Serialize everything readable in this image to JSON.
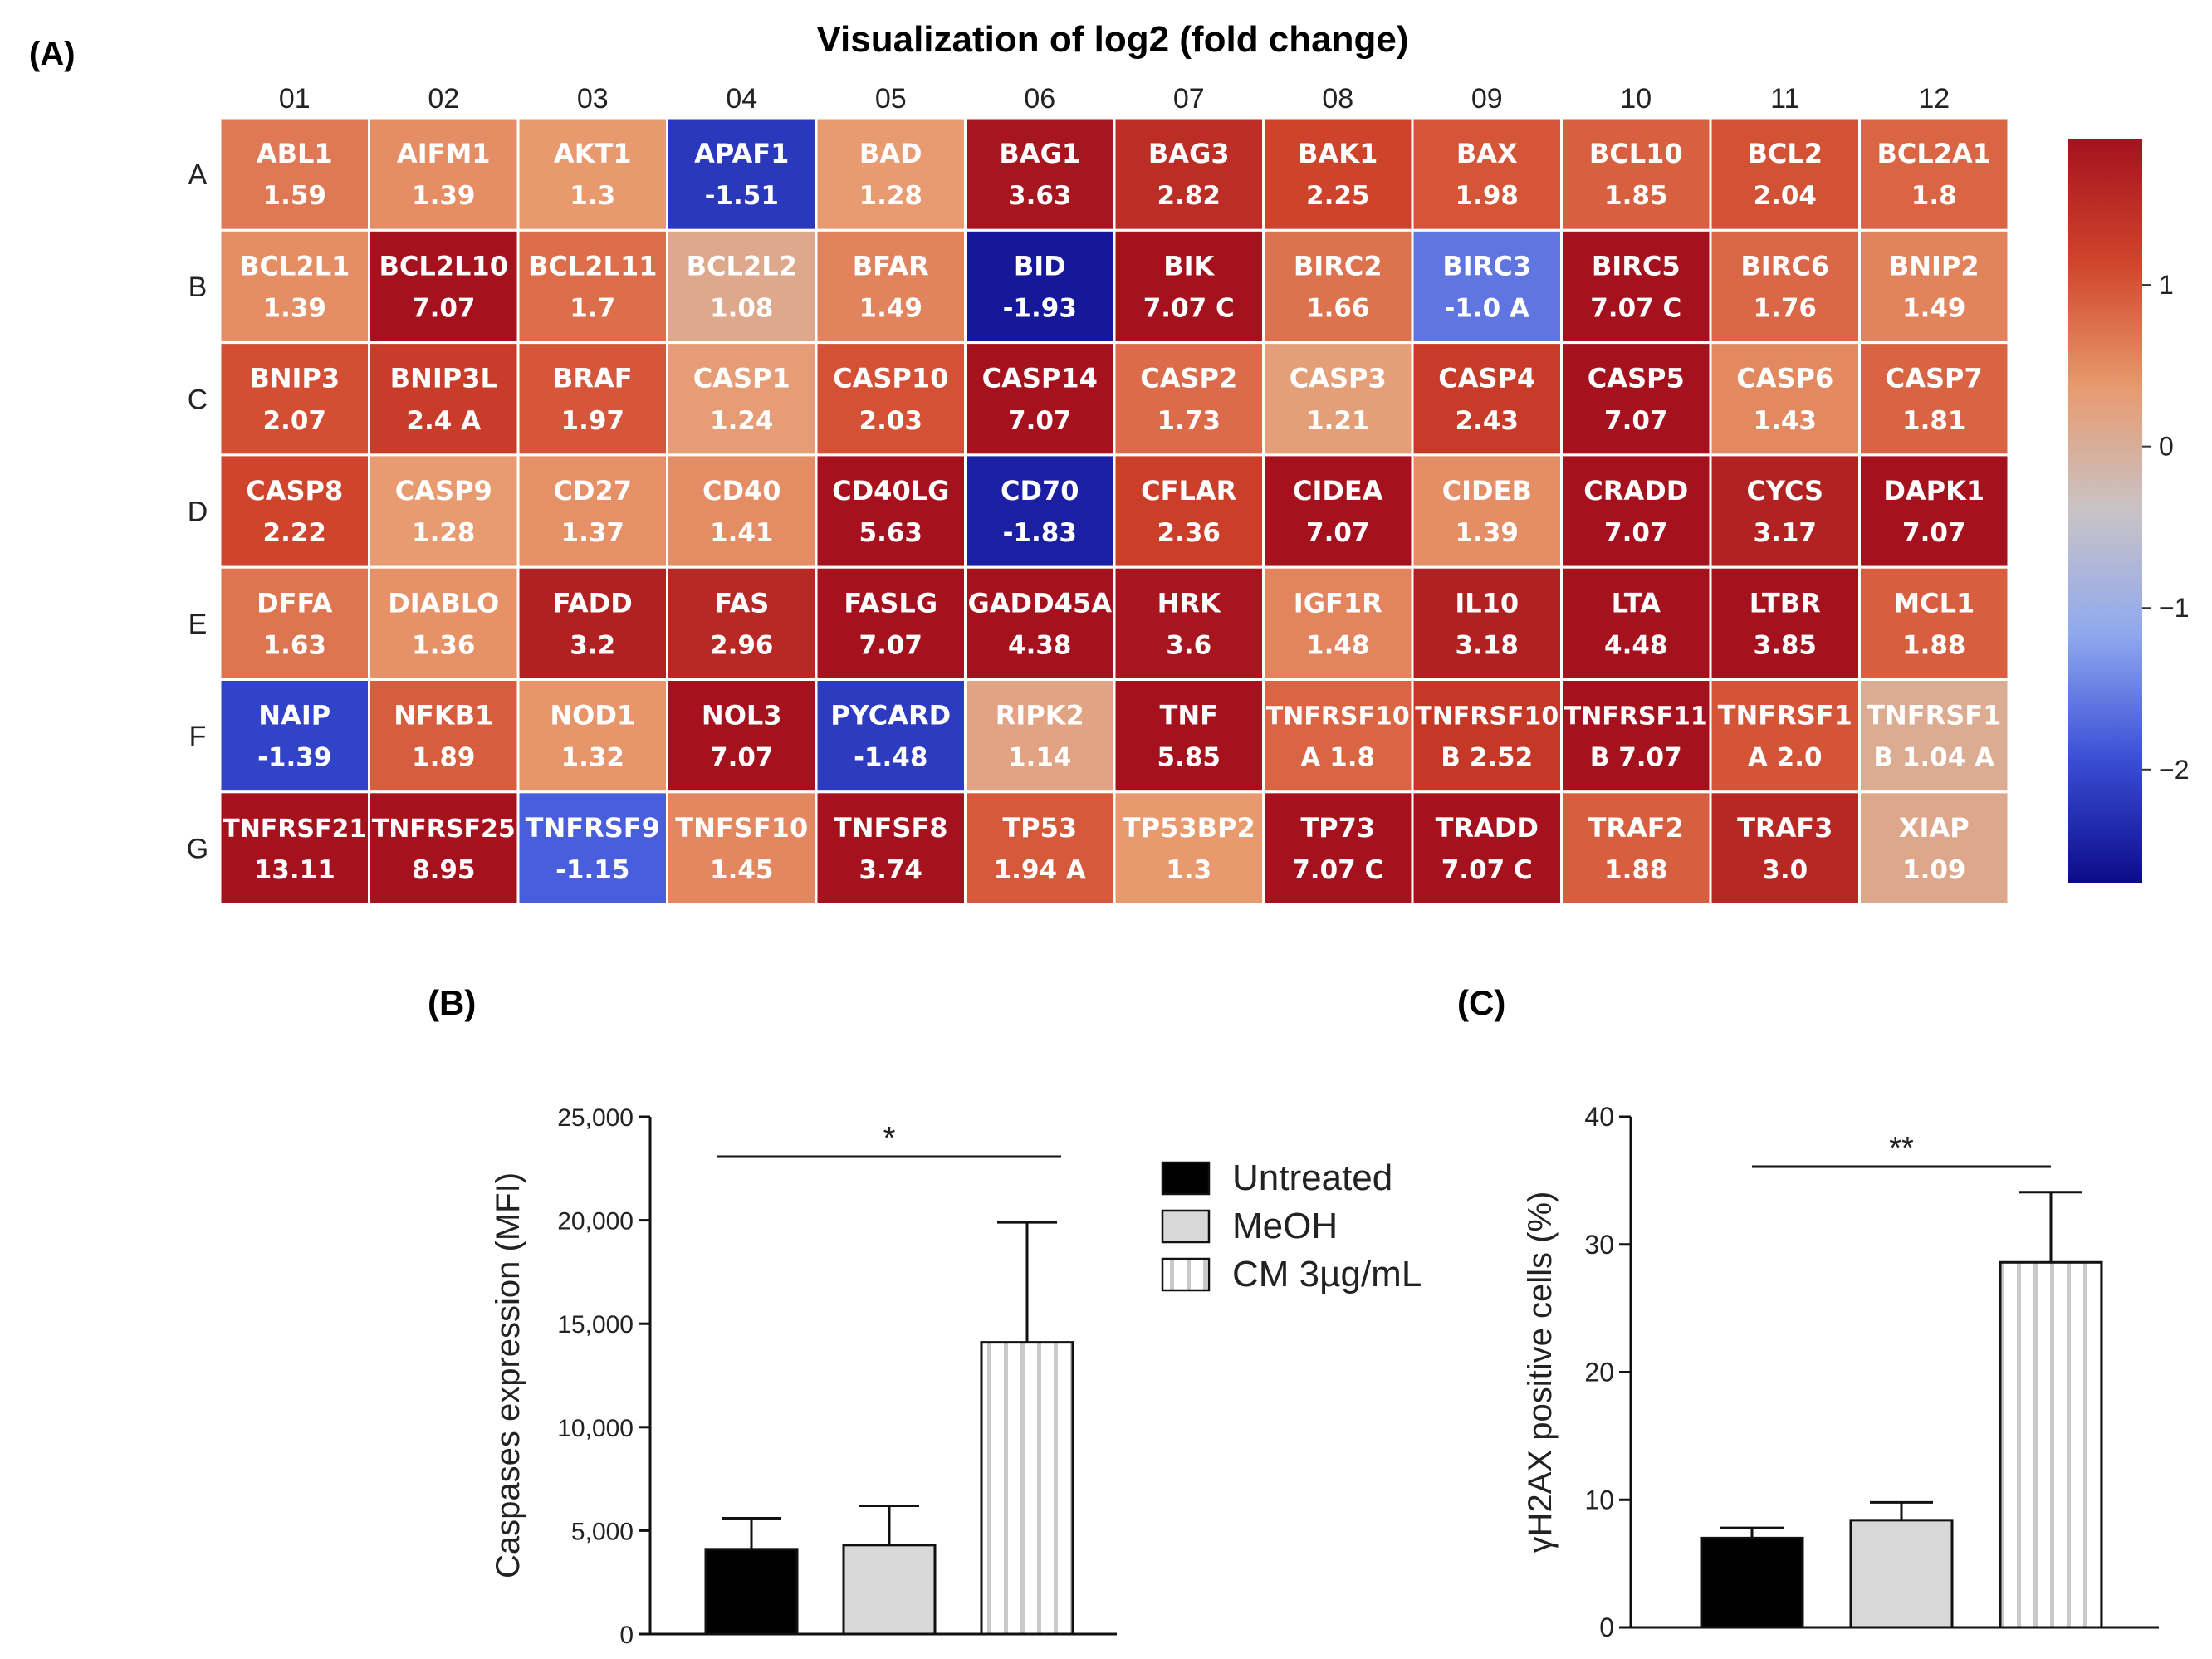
{
  "panels": {
    "a_label": "(A)",
    "b_label": "(B)",
    "c_label": "(C)"
  },
  "chart_data": [
    {
      "type": "heatmap",
      "title": "Visualization of log2 (fold change)",
      "columns": [
        "01",
        "02",
        "03",
        "04",
        "05",
        "06",
        "07",
        "08",
        "09",
        "10",
        "11",
        "12"
      ],
      "rows": [
        "A",
        "B",
        "C",
        "D",
        "E",
        "F",
        "G"
      ],
      "cells": [
        [
          [
            "ABL1",
            "1.59"
          ],
          [
            "AIFM1",
            "1.39"
          ],
          [
            "AKT1",
            "1.3"
          ],
          [
            "APAF1",
            "-1.51"
          ],
          [
            "BAD",
            "1.28"
          ],
          [
            "BAG1",
            "3.63"
          ],
          [
            "BAG3",
            "2.82"
          ],
          [
            "BAK1",
            "2.25"
          ],
          [
            "BAX",
            "1.98"
          ],
          [
            "BCL10",
            "1.85"
          ],
          [
            "BCL2",
            "2.04"
          ],
          [
            "BCL2A1",
            "1.8"
          ]
        ],
        [
          [
            "BCL2L1",
            "1.39"
          ],
          [
            "BCL2L10",
            "7.07"
          ],
          [
            "BCL2L11",
            "1.7"
          ],
          [
            "BCL2L2",
            "1.08"
          ],
          [
            "BFAR",
            "1.49"
          ],
          [
            "BID",
            "-1.93"
          ],
          [
            "BIK",
            "7.07 C"
          ],
          [
            "BIRC2",
            "1.66"
          ],
          [
            "BIRC3",
            "-1.0 A"
          ],
          [
            "BIRC5",
            "7.07 C"
          ],
          [
            "BIRC6",
            "1.76"
          ],
          [
            "BNIP2",
            "1.49"
          ]
        ],
        [
          [
            "BNIP3",
            "2.07"
          ],
          [
            "BNIP3L",
            "2.4 A"
          ],
          [
            "BRAF",
            "1.97"
          ],
          [
            "CASP1",
            "1.24"
          ],
          [
            "CASP10",
            "2.03"
          ],
          [
            "CASP14",
            "7.07"
          ],
          [
            "CASP2",
            "1.73"
          ],
          [
            "CASP3",
            "1.21"
          ],
          [
            "CASP4",
            "2.43"
          ],
          [
            "CASP5",
            "7.07"
          ],
          [
            "CASP6",
            "1.43"
          ],
          [
            "CASP7",
            "1.81"
          ]
        ],
        [
          [
            "CASP8",
            "2.22"
          ],
          [
            "CASP9",
            "1.28"
          ],
          [
            "CD27",
            "1.37"
          ],
          [
            "CD40",
            "1.41"
          ],
          [
            "CD40LG",
            "5.63"
          ],
          [
            "CD70",
            "-1.83"
          ],
          [
            "CFLAR",
            "2.36"
          ],
          [
            "CIDEA",
            "7.07"
          ],
          [
            "CIDEB",
            "1.39"
          ],
          [
            "CRADD",
            "7.07"
          ],
          [
            "CYCS",
            "3.17"
          ],
          [
            "DAPK1",
            "7.07"
          ]
        ],
        [
          [
            "DFFA",
            "1.63"
          ],
          [
            "DIABLO",
            "1.36"
          ],
          [
            "FADD",
            "3.2"
          ],
          [
            "FAS",
            "2.96"
          ],
          [
            "FASLG",
            "7.07"
          ],
          [
            "GADD45A",
            "4.38"
          ],
          [
            "HRK",
            "3.6"
          ],
          [
            "IGF1R",
            "1.48"
          ],
          [
            "IL10",
            "3.18"
          ],
          [
            "LTA",
            "4.48"
          ],
          [
            "LTBR",
            "3.85"
          ],
          [
            "MCL1",
            "1.88"
          ]
        ],
        [
          [
            "NAIP",
            "-1.39"
          ],
          [
            "NFKB1",
            "1.89"
          ],
          [
            "NOD1",
            "1.32"
          ],
          [
            "NOL3",
            "7.07"
          ],
          [
            "PYCARD",
            "-1.48"
          ],
          [
            "RIPK2",
            "1.14"
          ],
          [
            "TNF",
            "5.85"
          ],
          [
            "TNFRSF10",
            "A 1.8"
          ],
          [
            "TNFRSF10",
            "B 2.52"
          ],
          [
            "TNFRSF11",
            "B 7.07"
          ],
          [
            "TNFRSF1",
            "A 2.0"
          ],
          [
            "TNFRSF1",
            "B 1.04 A"
          ]
        ],
        [
          [
            "TNFRSF21",
            "13.11"
          ],
          [
            "TNFRSF25",
            "8.95"
          ],
          [
            "TNFRSF9",
            "-1.15"
          ],
          [
            "TNFSF10",
            "1.45"
          ],
          [
            "TNFSF8",
            "3.74"
          ],
          [
            "TP53",
            "1.94 A"
          ],
          [
            "TP53BP2",
            "1.3"
          ],
          [
            "TP73",
            "7.07 C"
          ],
          [
            "TRADD",
            "7.07 C"
          ],
          [
            "TRAF2",
            "1.88"
          ],
          [
            "TRAF3",
            "3.0"
          ],
          [
            "XIAP",
            "1.09"
          ]
        ]
      ],
      "colorbar": {
        "ticks": [
          "1",
          "0",
          "−1",
          "−2"
        ],
        "tick_values": [
          1,
          0,
          -1,
          -2
        ],
        "range": [
          -2.7,
          1.9
        ],
        "colors": [
          "#0c0c8a",
          "#3a4fd6",
          "#8fa8ee",
          "#c9c3c6",
          "#e89a6f",
          "#d0452c",
          "#a5121e"
        ]
      }
    },
    {
      "type": "bar",
      "ylabel": "Caspases expression (MFI)",
      "ylim": [
        0,
        25000
      ],
      "yticks": [
        "0",
        "5,000",
        "10,000",
        "15,000",
        "20,000",
        "25,000"
      ],
      "ytick_values": [
        0,
        5000,
        10000,
        15000,
        20000,
        25000
      ],
      "categories": [
        "Untreated",
        "MeOH",
        "CM 3µg/mL"
      ],
      "values": [
        4100,
        4300,
        14100
      ],
      "errors": [
        1500,
        1900,
        5800
      ],
      "significance": {
        "label": "*",
        "from": 0,
        "to": 2
      }
    },
    {
      "type": "bar",
      "ylabel": "γH2AX positive cells (%)",
      "ylim": [
        0,
        40
      ],
      "yticks": [
        "0",
        "10",
        "20",
        "30",
        "40"
      ],
      "ytick_values": [
        0,
        10,
        20,
        30,
        40
      ],
      "categories": [
        "Untreated",
        "MeOH",
        "CM 3µg/mL"
      ],
      "values": [
        7.0,
        8.4,
        28.6
      ],
      "errors": [
        0.8,
        1.4,
        5.5
      ],
      "significance": {
        "label": "**",
        "from": 0,
        "to": 2
      }
    }
  ],
  "legend": {
    "items": [
      {
        "label": "Untreated",
        "fill": "#000000",
        "pattern": "solid"
      },
      {
        "label": "MeOH",
        "fill": "#d8d8d8",
        "pattern": "solid"
      },
      {
        "label": "CM 3µg/mL",
        "fill": "#ffffff",
        "pattern": "vstripes"
      }
    ]
  }
}
